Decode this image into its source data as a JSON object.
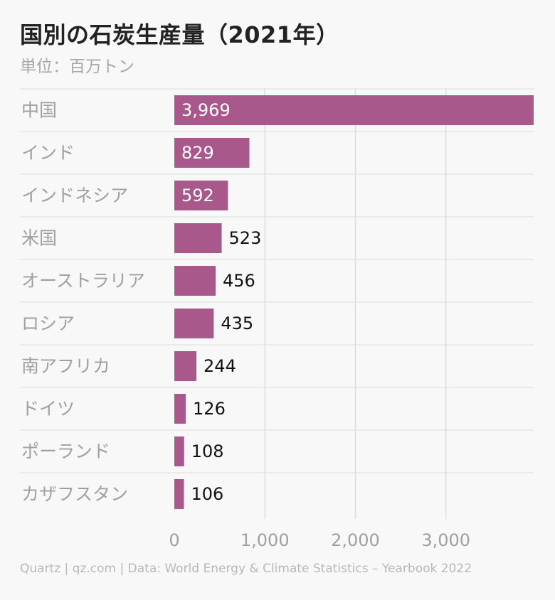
{
  "title": "国別の石炭生産量（2021年）",
  "subtitle": "単位：百万トン",
  "source": "Quartz | qz.com | Data: World Energy & Climate Statistics – Yearbook 2022",
  "colors": {
    "bar": "#a8588a",
    "grid": "#dddddd",
    "label": "#a0a0a0",
    "value_inside": "#ffffff",
    "value_outside": "#111111"
  },
  "chart_data": {
    "type": "bar",
    "orientation": "horizontal",
    "categories": [
      "中国",
      "インド",
      "インドネシア",
      "米国",
      "オーストラリア",
      "ロシア",
      "南アフリカ",
      "ドイツ",
      "ポーランド",
      "カザフスタン"
    ],
    "values": [
      3969,
      829,
      592,
      523,
      456,
      435,
      244,
      126,
      108,
      106
    ],
    "value_labels": [
      "3,969",
      "829",
      "592",
      "523",
      "456",
      "435",
      "244",
      "126",
      "108",
      "106"
    ],
    "x_ticks": [
      0,
      1000,
      2000,
      3000
    ],
    "x_tick_labels": [
      "0",
      "1,000",
      "2,000",
      "3,000"
    ],
    "xlim": [
      0,
      3969
    ],
    "grid": true,
    "legend": "none"
  }
}
